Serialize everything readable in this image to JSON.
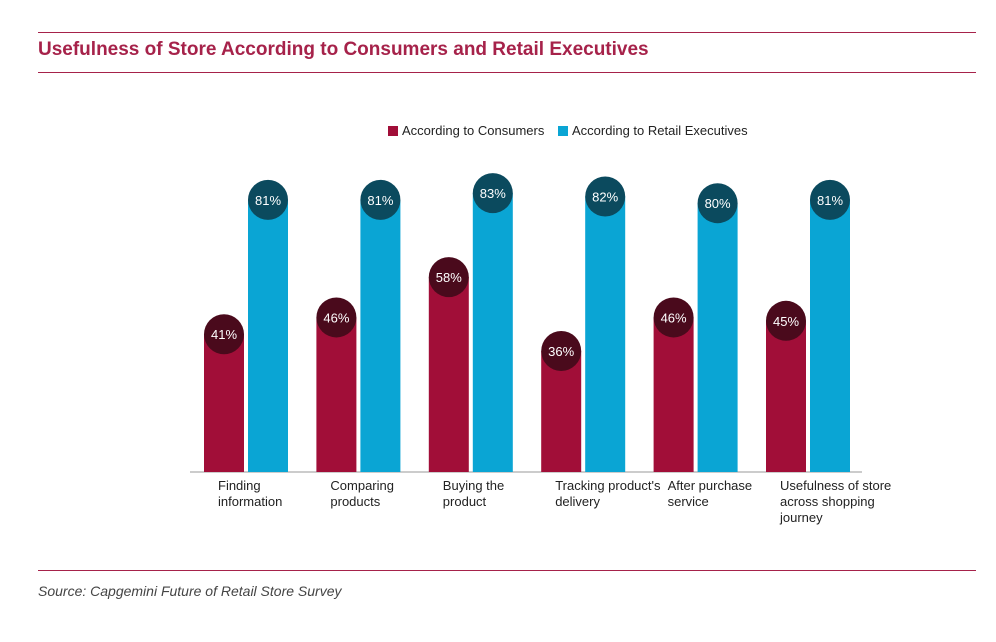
{
  "title": "Usefulness of Store According to Consumers and Retail Executives",
  "source": "Source: Capgemini Future of Retail Store Survey",
  "colors": {
    "brand": "#a6224a",
    "consumers": "#a10e38",
    "consumers_badge": "#4a0a1c",
    "executives": "#0aa5d4",
    "executives_badge": "#0b4a5e"
  },
  "chart_data": {
    "type": "bar",
    "title": "Usefulness of Store According to Consumers and Retail Executives",
    "categories": [
      [
        "Finding",
        "information"
      ],
      [
        "Comparing",
        "products"
      ],
      [
        "Buying the",
        "product"
      ],
      [
        "Tracking product's",
        "delivery"
      ],
      [
        "After purchase",
        "service"
      ],
      [
        "Usefulness of store",
        "across shopping",
        "journey"
      ]
    ],
    "series": [
      {
        "name": "According to Consumers",
        "values": [
          41,
          46,
          58,
          36,
          46,
          45
        ],
        "labels": [
          "41%",
          "46%",
          "58%",
          "36%",
          "46%",
          "45%"
        ]
      },
      {
        "name": "According to Retail Executives",
        "values": [
          81,
          81,
          83,
          82,
          80,
          81
        ],
        "labels": [
          "81%",
          "81%",
          "83%",
          "82%",
          "80%",
          "81%"
        ]
      }
    ],
    "unit": "%",
    "ylim": [
      0,
      100
    ],
    "grid": false,
    "legend": "top-center"
  }
}
